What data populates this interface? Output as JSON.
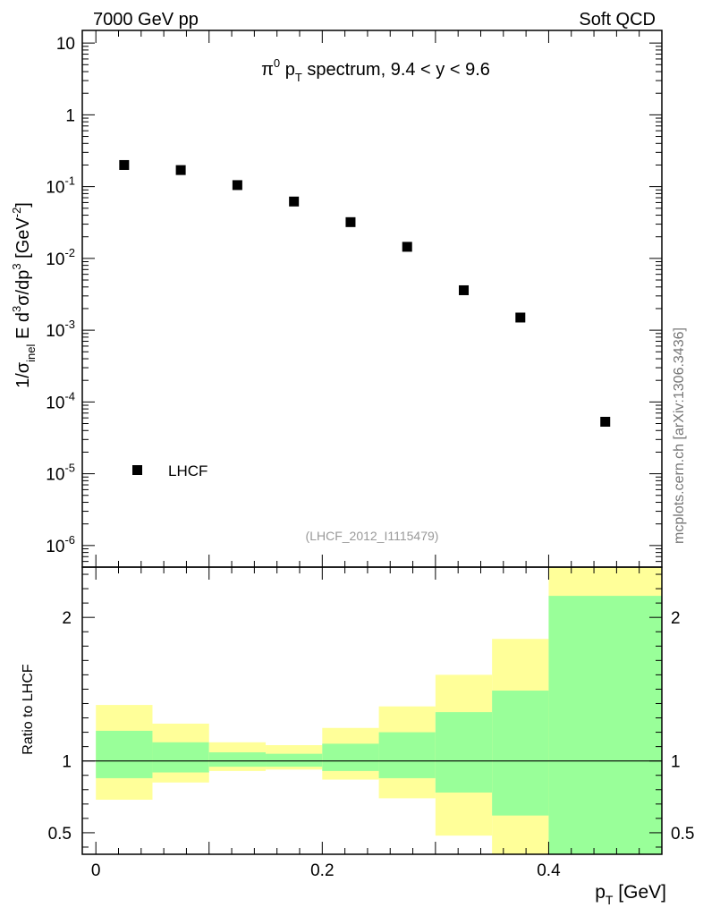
{
  "header": {
    "left": "7000 GeV pp",
    "right": "Soft QCD"
  },
  "side_label": "mcplots.cern.ch [arXiv:1306.3436]",
  "chart_data": [
    {
      "type": "scatter",
      "title_parts": {
        "pi": "π",
        "pi_sup": "0",
        "p": " p",
        "p_sub": "T",
        "rest": " spectrum, 9.4 < y < 9.6"
      },
      "ylabel_parts": [
        {
          "t": "1/σ",
          "s": "n"
        },
        {
          "t": "inel",
          "s": "sub"
        },
        {
          "t": " E d",
          "s": "n"
        },
        {
          "t": "3",
          "s": "sup"
        },
        {
          "t": "σ/dp",
          "s": "n"
        },
        {
          "t": "3",
          "s": "sup"
        },
        {
          "t": " [GeV",
          "s": "n"
        },
        {
          "t": "-2",
          "s": "sup"
        },
        {
          "t": "]",
          "s": "n"
        }
      ],
      "yscale": "log",
      "ylim": [
        5e-07,
        15
      ],
      "xlim": [
        -0.012,
        0.5
      ],
      "yticks": [
        {
          "value": 1e-06,
          "base": "10",
          "exp": "-6"
        },
        {
          "value": 1e-05,
          "base": "10",
          "exp": "-5"
        },
        {
          "value": 0.0001,
          "base": "10",
          "exp": "-4"
        },
        {
          "value": 0.001,
          "base": "10",
          "exp": "-3"
        },
        {
          "value": 0.01,
          "base": "10",
          "exp": "-2"
        },
        {
          "value": 0.1,
          "base": "10",
          "exp": "-1"
        },
        {
          "value": 1,
          "base": "1",
          "exp": ""
        },
        {
          "value": 10,
          "base": "10",
          "exp": ""
        }
      ],
      "series": [
        {
          "name": "LHCF",
          "marker": "square",
          "color": "#000000",
          "x": [
            0.025,
            0.075,
            0.125,
            0.175,
            0.225,
            0.275,
            0.325,
            0.375,
            0.45
          ],
          "y": [
            0.2,
            0.17,
            0.105,
            0.062,
            0.032,
            0.0145,
            0.0036,
            0.0015,
            5.3e-05
          ]
        }
      ],
      "legend": {
        "label": "LHCF",
        "placement": "bottom-left"
      },
      "annotation": "(LHCF_2012_I1115479)"
    },
    {
      "type": "area",
      "ylabel": "Ratio to LHCF",
      "xlabel_parts": {
        "p": "p",
        "sub": "T",
        "rest": " [GeV]"
      },
      "xlim": [
        -0.012,
        0.5
      ],
      "ylim": [
        0.35,
        2.35
      ],
      "xticks": [
        {
          "value": 0,
          "label": "0"
        },
        {
          "value": 0.2,
          "label": "0.2"
        },
        {
          "value": 0.4,
          "label": "0.4"
        }
      ],
      "yticks": [
        {
          "value": 0.5,
          "label": "0.5"
        },
        {
          "value": 1,
          "label": "1"
        },
        {
          "value": 2,
          "label": "2"
        }
      ],
      "reference_line": 1.0,
      "bins": [
        {
          "x0": 0.0,
          "x1": 0.05,
          "yellow": [
            0.73,
            1.39
          ],
          "green": [
            0.88,
            1.21
          ]
        },
        {
          "x0": 0.05,
          "x1": 0.1,
          "yellow": [
            0.85,
            1.26
          ],
          "green": [
            0.92,
            1.13
          ]
        },
        {
          "x0": 0.1,
          "x1": 0.15,
          "yellow": [
            0.93,
            1.13
          ],
          "green": [
            0.96,
            1.06
          ]
        },
        {
          "x0": 0.15,
          "x1": 0.2,
          "yellow": [
            0.94,
            1.11
          ],
          "green": [
            0.96,
            1.05
          ]
        },
        {
          "x0": 0.2,
          "x1": 0.25,
          "yellow": [
            0.87,
            1.23
          ],
          "green": [
            0.93,
            1.12
          ]
        },
        {
          "x0": 0.25,
          "x1": 0.3,
          "yellow": [
            0.74,
            1.38
          ],
          "green": [
            0.88,
            1.2
          ]
        },
        {
          "x0": 0.3,
          "x1": 0.35,
          "yellow": [
            0.48,
            1.6
          ],
          "green": [
            0.78,
            1.34
          ]
        },
        {
          "x0": 0.35,
          "x1": 0.4,
          "yellow": [
            0.35,
            1.85
          ],
          "green": [
            0.62,
            1.49
          ]
        },
        {
          "x0": 0.4,
          "x1": 0.5,
          "yellow": [
            0.35,
            2.35
          ],
          "green": [
            0.35,
            2.15
          ]
        }
      ],
      "colors": {
        "yellow": "#ffff99",
        "green": "#99ff99"
      }
    }
  ]
}
